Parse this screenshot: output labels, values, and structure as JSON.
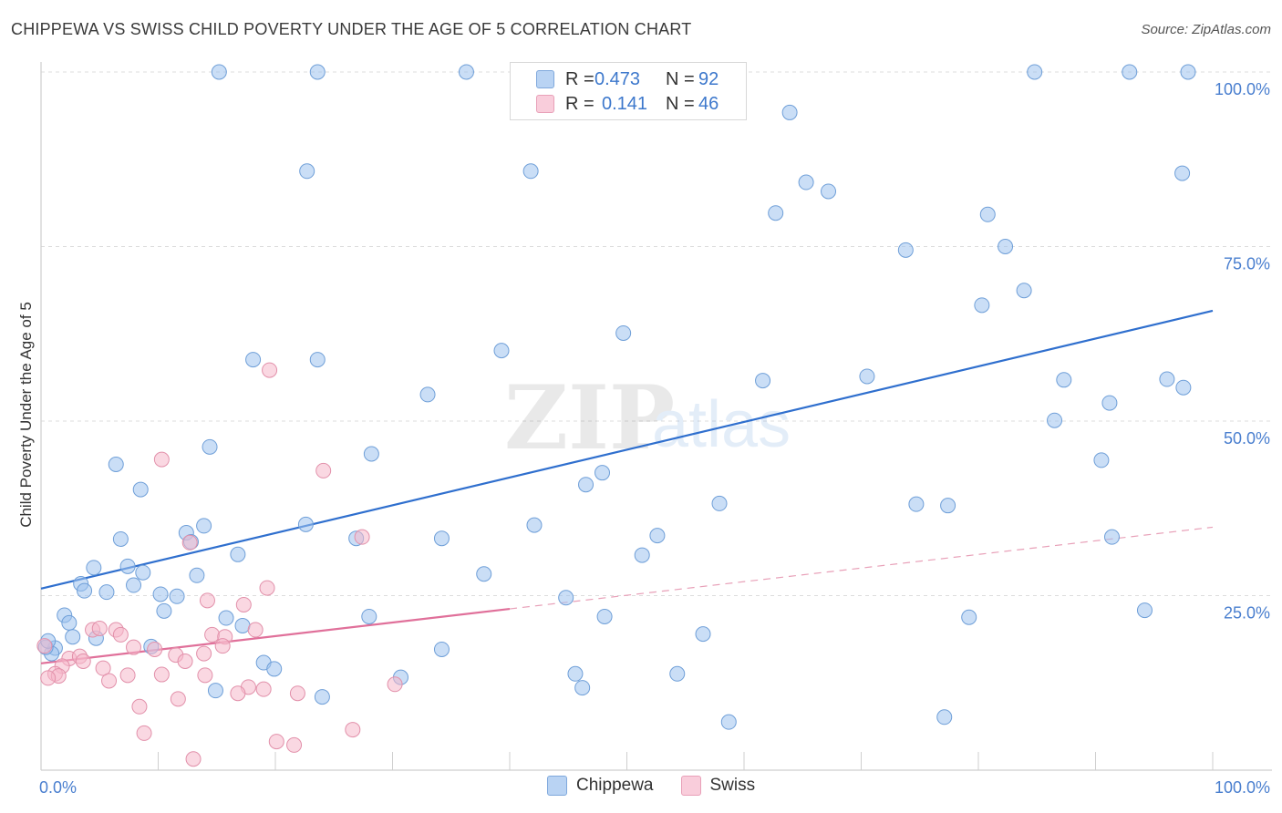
{
  "title": "CHIPPEWA VS SWISS CHILD POVERTY UNDER THE AGE OF 5 CORRELATION CHART",
  "source": "Source: ZipAtlas.com",
  "watermark": {
    "zip": "ZIP",
    "atlas": "atlas"
  },
  "legend": [
    {
      "r_label": "R =",
      "r_value": "0.473",
      "n_label": "N =",
      "n_value": "92",
      "color": "#9fc3ee"
    },
    {
      "r_label": "R =",
      "r_value": "0.141",
      "n_label": "N =",
      "n_value": "46",
      "color": "#f5b8cb"
    }
  ],
  "bottom_legend": [
    {
      "label": "Chippewa",
      "color": "#9fc3ee"
    },
    {
      "label": "Swiss",
      "color": "#f5b8cb"
    }
  ],
  "chart_data": {
    "type": "scatter",
    "title": "CHIPPEWA VS SWISS CHILD POVERTY UNDER THE AGE OF 5 CORRELATION CHART",
    "xlabel": "",
    "ylabel": "Child Poverty Under the Age of 5",
    "xlim": [
      0,
      100
    ],
    "ylim": [
      0,
      100
    ],
    "x_tick_labels": [
      "0.0%",
      "100.0%"
    ],
    "y_tick_labels": [
      "25.0%",
      "50.0%",
      "75.0%",
      "100.0%"
    ],
    "y_ticks": [
      25,
      50,
      75,
      100
    ],
    "grid": true,
    "legend_position": "top-center",
    "series": [
      {
        "name": "Chippewa",
        "color": "#9fc3ee",
        "stroke": "#6f9fd8",
        "trend": {
          "x": [
            0,
            100
          ],
          "y": [
            26.0,
            65.8
          ],
          "color": "#2f6fce",
          "style": "solid"
        },
        "points": [
          [
            15.2,
            100
          ],
          [
            23.6,
            100
          ],
          [
            36.3,
            100
          ],
          [
            84.8,
            100
          ],
          [
            92.9,
            100
          ],
          [
            97.9,
            100
          ],
          [
            22.7,
            85.8
          ],
          [
            41.8,
            85.8
          ],
          [
            63.9,
            94.2
          ],
          [
            97.4,
            85.5
          ],
          [
            65.3,
            84.2
          ],
          [
            67.2,
            82.9
          ],
          [
            62.7,
            79.8
          ],
          [
            80.8,
            79.6
          ],
          [
            73.8,
            74.5
          ],
          [
            82.3,
            75.0
          ],
          [
            83.9,
            68.7
          ],
          [
            80.3,
            66.6
          ],
          [
            49.7,
            62.6
          ],
          [
            39.3,
            60.1
          ],
          [
            18.1,
            58.8
          ],
          [
            23.6,
            58.8
          ],
          [
            33.0,
            53.8
          ],
          [
            61.6,
            55.8
          ],
          [
            70.5,
            56.4
          ],
          [
            87.3,
            55.9
          ],
          [
            96.1,
            56.0
          ],
          [
            97.5,
            54.8
          ],
          [
            91.2,
            52.6
          ],
          [
            86.5,
            50.1
          ],
          [
            14.4,
            46.3
          ],
          [
            28.2,
            45.3
          ],
          [
            6.4,
            43.8
          ],
          [
            47.9,
            42.6
          ],
          [
            90.5,
            44.4
          ],
          [
            8.5,
            40.2
          ],
          [
            46.5,
            40.9
          ],
          [
            57.9,
            38.2
          ],
          [
            77.4,
            37.9
          ],
          [
            74.7,
            38.1
          ],
          [
            12.4,
            34.0
          ],
          [
            13.9,
            35.0
          ],
          [
            22.6,
            35.2
          ],
          [
            34.2,
            33.2
          ],
          [
            42.1,
            35.1
          ],
          [
            6.8,
            33.1
          ],
          [
            26.9,
            33.2
          ],
          [
            52.6,
            33.6
          ],
          [
            12.8,
            32.7
          ],
          [
            16.8,
            30.9
          ],
          [
            51.3,
            30.8
          ],
          [
            91.4,
            33.4
          ],
          [
            4.5,
            29.0
          ],
          [
            7.4,
            29.2
          ],
          [
            8.7,
            28.3
          ],
          [
            13.3,
            27.9
          ],
          [
            37.8,
            28.1
          ],
          [
            3.4,
            26.7
          ],
          [
            7.9,
            26.5
          ],
          [
            3.7,
            25.7
          ],
          [
            5.6,
            25.5
          ],
          [
            10.2,
            25.2
          ],
          [
            11.6,
            24.9
          ],
          [
            44.8,
            24.7
          ],
          [
            2.0,
            22.2
          ],
          [
            10.5,
            22.8
          ],
          [
            15.8,
            21.8
          ],
          [
            28.0,
            22.0
          ],
          [
            48.1,
            22.0
          ],
          [
            79.2,
            21.9
          ],
          [
            94.2,
            22.9
          ],
          [
            2.4,
            21.1
          ],
          [
            17.2,
            20.7
          ],
          [
            2.7,
            19.1
          ],
          [
            4.7,
            18.9
          ],
          [
            56.5,
            19.5
          ],
          [
            34.2,
            17.3
          ],
          [
            9.4,
            17.7
          ],
          [
            1.2,
            17.5
          ],
          [
            19.0,
            15.4
          ],
          [
            19.9,
            14.5
          ],
          [
            30.7,
            13.3
          ],
          [
            45.6,
            13.8
          ],
          [
            54.3,
            13.8
          ],
          [
            46.2,
            11.8
          ],
          [
            14.9,
            11.4
          ],
          [
            24.0,
            10.5
          ],
          [
            58.7,
            6.9
          ],
          [
            77.1,
            7.6
          ],
          [
            0.9,
            16.7
          ],
          [
            0.4,
            17.6
          ],
          [
            0.6,
            18.5
          ]
        ]
      },
      {
        "name": "Swiss",
        "color": "#f5b8cb",
        "stroke": "#e290aa",
        "trend": {
          "x": [
            0,
            40
          ],
          "y": [
            15.3,
            23.1
          ],
          "color": "#e0709a",
          "style": "solid"
        },
        "trend_ext": {
          "x": [
            40,
            100
          ],
          "y": [
            23.1,
            34.8
          ],
          "color": "#e8a0b8",
          "style": "dashed"
        },
        "points": [
          [
            19.5,
            57.3
          ],
          [
            10.3,
            44.5
          ],
          [
            24.1,
            42.9
          ],
          [
            27.4,
            33.4
          ],
          [
            12.7,
            32.6
          ],
          [
            19.3,
            26.1
          ],
          [
            14.2,
            24.3
          ],
          [
            17.3,
            23.7
          ],
          [
            4.4,
            20.1
          ],
          [
            5.0,
            20.3
          ],
          [
            6.4,
            20.1
          ],
          [
            14.6,
            19.4
          ],
          [
            18.3,
            20.1
          ],
          [
            6.8,
            19.4
          ],
          [
            15.7,
            19.1
          ],
          [
            15.5,
            17.8
          ],
          [
            7.9,
            17.6
          ],
          [
            9.7,
            17.3
          ],
          [
            13.9,
            16.7
          ],
          [
            11.5,
            16.5
          ],
          [
            2.4,
            16.0
          ],
          [
            3.3,
            16.3
          ],
          [
            3.6,
            15.6
          ],
          [
            12.3,
            15.6
          ],
          [
            1.8,
            14.9
          ],
          [
            5.3,
            14.6
          ],
          [
            1.2,
            13.8
          ],
          [
            1.5,
            13.5
          ],
          [
            7.4,
            13.6
          ],
          [
            10.3,
            13.7
          ],
          [
            14.0,
            13.6
          ],
          [
            5.8,
            12.8
          ],
          [
            30.2,
            12.3
          ],
          [
            17.7,
            11.9
          ],
          [
            19.0,
            11.6
          ],
          [
            16.8,
            11.0
          ],
          [
            21.9,
            11.0
          ],
          [
            11.7,
            10.2
          ],
          [
            8.4,
            9.1
          ],
          [
            26.6,
            5.8
          ],
          [
            8.8,
            5.3
          ],
          [
            20.1,
            4.1
          ],
          [
            21.6,
            3.6
          ],
          [
            13.0,
            1.6
          ],
          [
            0.6,
            13.2
          ],
          [
            0.3,
            17.8
          ]
        ]
      }
    ]
  }
}
